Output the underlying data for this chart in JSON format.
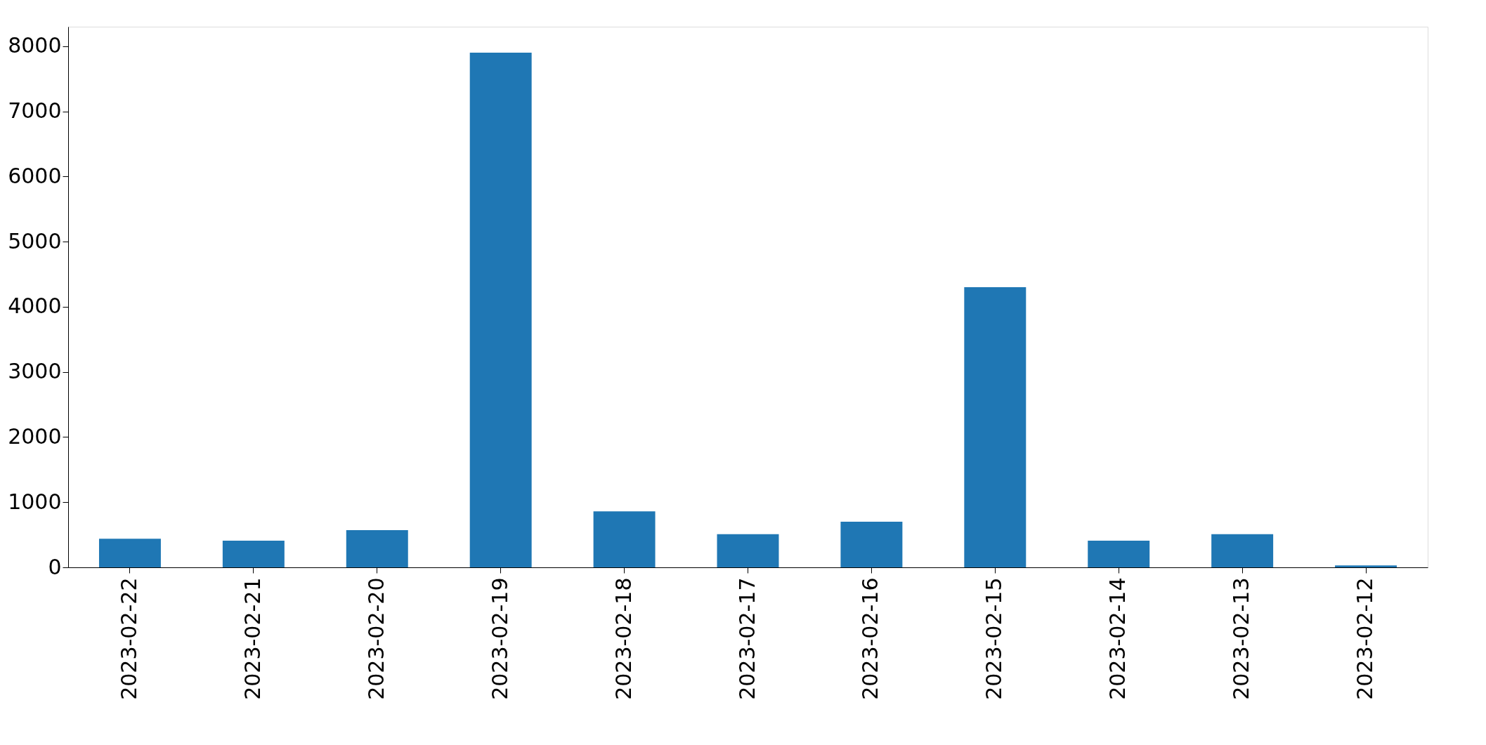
{
  "chart_data": {
    "type": "bar",
    "categories": [
      "2023-02-22",
      "2023-02-21",
      "2023-02-20",
      "2023-02-19",
      "2023-02-18",
      "2023-02-17",
      "2023-02-16",
      "2023-02-15",
      "2023-02-14",
      "2023-02-13",
      "2023-02-12"
    ],
    "values": [
      440,
      410,
      570,
      7900,
      860,
      510,
      700,
      4300,
      410,
      510,
      30
    ],
    "color": "#1f77b4",
    "ylim": [
      0,
      8300
    ],
    "yticks": [
      0,
      1000,
      2000,
      3000,
      4000,
      5000,
      6000,
      7000,
      8000
    ]
  }
}
